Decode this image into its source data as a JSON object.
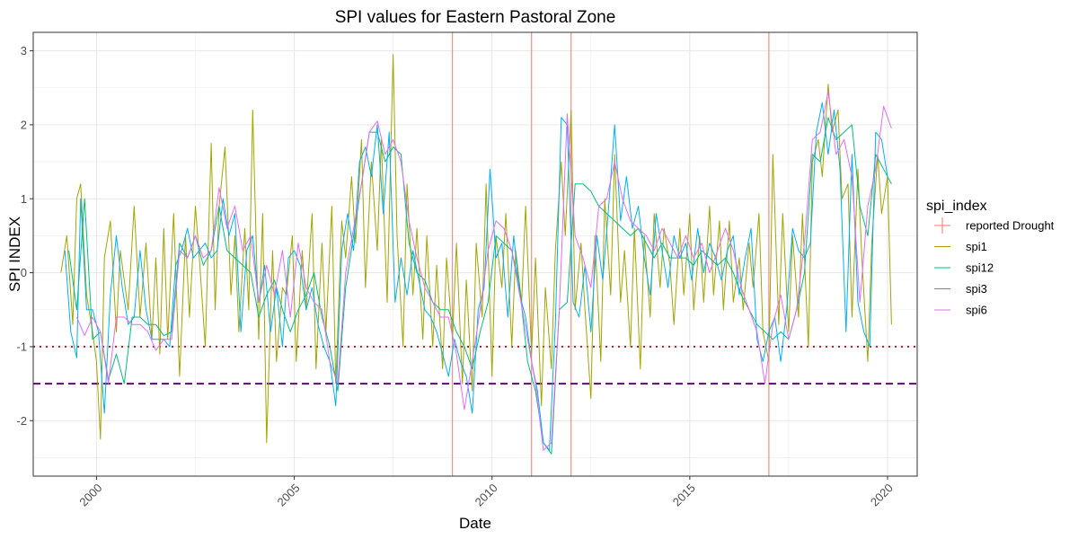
{
  "chart_data": {
    "type": "line",
    "title": "SPI values for Eastern Pastoral Zone",
    "xlabel": "Date",
    "ylabel": "SPI INDEX",
    "xlim": [
      1998.4,
      2020.75
    ],
    "ylim": [
      -2.75,
      3.25
    ],
    "x_ticks": [
      2000,
      2005,
      2010,
      2015,
      2020
    ],
    "x_tick_labels": [
      "2000",
      "2005",
      "2010",
      "2015",
      "2020"
    ],
    "y_ticks": [
      -2,
      -1,
      0,
      1,
      2,
      3
    ],
    "y_tick_labels": [
      "-2",
      "-1",
      "0",
      "1",
      "2",
      "3"
    ],
    "grid": true,
    "legend": {
      "title": "spi_index",
      "position": "right",
      "entries": [
        "reported Drought",
        "spi1",
        "spi12",
        "spi3",
        "spi6"
      ]
    },
    "drought_years": [
      2009.0,
      2011.0,
      2012.0,
      2017.0
    ],
    "thresholds": [
      {
        "value": -1.0,
        "style": "dotted",
        "color": "#B2182B"
      },
      {
        "value": -1.5,
        "style": "dashed",
        "color": "#5E0A6E"
      }
    ],
    "colors": {
      "reported Drought": "#F8766D",
      "spi1": "#A3A500",
      "spi12": "#00BF7D",
      "spi3": "#00B0F6",
      "spi6": "#E76BF3"
    },
    "series": [
      {
        "name": "spi1",
        "x": [
          1999.1,
          1999.25,
          1999.4,
          1999.5,
          1999.6,
          1999.75,
          1999.9,
          2000.0,
          2000.1,
          2000.2,
          2000.35,
          2000.5,
          2000.6,
          2000.8,
          2000.95,
          2001.1,
          2001.25,
          2001.4,
          2001.5,
          2001.6,
          2001.7,
          2001.8,
          2001.95,
          2002.1,
          2002.25,
          2002.35,
          2002.5,
          2002.6,
          2002.75,
          2002.9,
          2003.0,
          2003.1,
          2003.25,
          2003.4,
          2003.5,
          2003.6,
          2003.75,
          2003.85,
          2003.95,
          2004.1,
          2004.2,
          2004.3,
          2004.45,
          2004.55,
          2004.7,
          2004.8,
          2004.95,
          2005.05,
          2005.2,
          2005.3,
          2005.45,
          2005.55,
          2005.7,
          2005.8,
          2005.95,
          2006.05,
          2006.2,
          2006.3,
          2006.45,
          2006.55,
          2006.7,
          2006.8,
          2006.95,
          2007.1,
          2007.2,
          2007.35,
          2007.5,
          2007.6,
          2007.75,
          2007.85,
          2008.0,
          2008.1,
          2008.25,
          2008.35,
          2008.5,
          2008.6,
          2008.75,
          2008.85,
          2009.0,
          2009.1,
          2009.25,
          2009.35,
          2009.5,
          2009.6,
          2009.75,
          2009.85,
          2010.0,
          2010.1,
          2010.25,
          2010.35,
          2010.5,
          2010.6,
          2010.75,
          2010.85,
          2011.0,
          2011.1,
          2011.25,
          2011.35,
          2011.5,
          2011.6,
          2011.75,
          2011.85,
          2012.0,
          2012.1,
          2012.25,
          2012.35,
          2012.5,
          2012.6,
          2012.75,
          2012.85,
          2013.0,
          2013.1,
          2013.25,
          2013.35,
          2013.5,
          2013.6,
          2013.75,
          2013.85,
          2014.0,
          2014.1,
          2014.25,
          2014.35,
          2014.5,
          2014.6,
          2014.75,
          2014.85,
          2015.0,
          2015.1,
          2015.25,
          2015.35,
          2015.5,
          2015.6,
          2015.75,
          2015.85,
          2016.0,
          2016.1,
          2016.25,
          2016.35,
          2016.5,
          2016.6,
          2016.75,
          2016.85,
          2017.0,
          2017.1,
          2017.25,
          2017.35,
          2017.5,
          2017.6,
          2017.75,
          2017.85,
          2018.0,
          2018.1,
          2018.25,
          2018.35,
          2018.5,
          2018.6,
          2018.75,
          2018.85,
          2019.0,
          2019.1,
          2019.25,
          2019.35,
          2019.5,
          2019.6,
          2019.75,
          2019.85,
          2020.0,
          2020.1
        ],
        "values": [
          0.0,
          0.5,
          -0.7,
          1.0,
          1.2,
          -0.3,
          -0.8,
          -1.2,
          -2.25,
          0.2,
          0.7,
          -0.8,
          0.3,
          -0.5,
          0.9,
          -0.6,
          0.4,
          -0.9,
          0.2,
          -1.1,
          0.6,
          -0.9,
          0.8,
          -1.4,
          0.5,
          -0.6,
          0.9,
          0.2,
          -1.0,
          1.75,
          -0.5,
          0.9,
          1.7,
          -0.3,
          0.5,
          -0.8,
          0.6,
          -0.5,
          2.2,
          -0.9,
          0.8,
          -2.3,
          0.3,
          -1.2,
          -0.2,
          -0.3,
          0.5,
          -1.2,
          0.3,
          -0.5,
          0.8,
          -1.3,
          0.4,
          -0.8,
          0.9,
          -1.5,
          0.7,
          0.2,
          1.3,
          0.4,
          1.8,
          -0.2,
          1.5,
          0.3,
          1.8,
          -0.4,
          2.95,
          0.5,
          -1.0,
          1.2,
          -0.3,
          0.6,
          -0.9,
          0.5,
          -1.0,
          0.1,
          -1.3,
          0.2,
          -0.9,
          0.4,
          -1.5,
          -0.1,
          -1.6,
          0.4,
          -0.6,
          1.2,
          -1.4,
          0.5,
          -0.2,
          0.8,
          -1.0,
          0.3,
          -0.4,
          0.9,
          -1.1,
          0.2,
          -1.8,
          -0.2,
          -1.3,
          0.3,
          1.5,
          0.5,
          2.2,
          -0.5,
          0.4,
          -0.5,
          -1.7,
          0.5,
          -1.2,
          1.0,
          -0.3,
          1.6,
          -0.4,
          0.3,
          -1.0,
          0.6,
          -1.3,
          0.5,
          -0.6,
          0.8,
          -0.2,
          0.6,
          0.1,
          -0.7,
          0.6,
          -0.3,
          0.8,
          -0.5,
          0.5,
          -0.4,
          0.9,
          -0.3,
          0.7,
          -0.5,
          0.7,
          -0.4,
          0.2,
          -0.5,
          0.4,
          -0.2,
          0.8,
          -0.8,
          -1.2,
          1.6,
          -0.7,
          0.8,
          -0.8,
          0.5,
          -0.6,
          0.8,
          -1.0,
          1.5,
          1.8,
          1.3,
          2.55,
          1.9,
          2.2,
          1.0,
          1.2,
          -0.6,
          1.4,
          0.2,
          -1.2,
          0.4,
          1.6,
          0.8,
          1.3,
          -0.7
        ]
      },
      {
        "name": "spi12",
        "x": [
          1999.3,
          1999.5,
          1999.7,
          1999.9,
          2000.1,
          2000.3,
          2000.5,
          2000.7,
          2000.9,
          2001.1,
          2001.3,
          2001.5,
          2001.7,
          2001.9,
          2002.1,
          2002.3,
          2002.5,
          2002.7,
          2002.9,
          2003.1,
          2003.3,
          2003.5,
          2003.7,
          2003.9,
          2004.1,
          2004.3,
          2004.5,
          2004.7,
          2004.9,
          2005.1,
          2005.3,
          2005.5,
          2005.7,
          2005.9,
          2006.1,
          2006.3,
          2006.5,
          2006.7,
          2006.9,
          2007.1,
          2007.3,
          2007.5,
          2007.7,
          2007.9,
          2008.1,
          2008.3,
          2008.5,
          2008.7,
          2008.9,
          2009.1,
          2009.3,
          2009.5,
          2009.7,
          2009.9,
          2010.1,
          2010.3,
          2010.5,
          2010.7,
          2010.9,
          2011.1,
          2011.3,
          2011.5,
          2011.7,
          2011.9,
          2012.1,
          2012.3,
          2012.5,
          2012.7,
          2012.9,
          2013.1,
          2013.3,
          2013.5,
          2013.7,
          2013.9,
          2014.1,
          2014.3,
          2014.5,
          2014.7,
          2014.9,
          2015.1,
          2015.3,
          2015.5,
          2015.7,
          2015.9,
          2016.1,
          2016.3,
          2016.5,
          2016.7,
          2016.9,
          2017.1,
          2017.3,
          2017.5,
          2017.7,
          2017.9,
          2018.1,
          2018.3,
          2018.5,
          2018.7,
          2018.9,
          2019.1,
          2019.3,
          2019.5,
          2019.7,
          2019.9,
          2020.1
        ],
        "values": [
          0.3,
          -0.5,
          1.0,
          -0.9,
          -0.8,
          -1.45,
          -1.1,
          -1.5,
          -0.6,
          -0.6,
          -0.7,
          -0.7,
          -0.85,
          -0.8,
          0.4,
          0.2,
          0.5,
          0.1,
          0.3,
          0.9,
          0.3,
          0.2,
          0.1,
          0.0,
          -0.6,
          -0.3,
          -0.1,
          -0.5,
          -0.8,
          -0.5,
          -0.3,
          0.0,
          -0.6,
          -1.0,
          -1.6,
          -0.2,
          0.5,
          1.2,
          1.9,
          1.9,
          1.5,
          1.7,
          1.6,
          0.4,
          0.0,
          -0.1,
          -0.4,
          -0.5,
          -0.5,
          -0.8,
          -1.0,
          -1.3,
          -0.8,
          -0.4,
          0.5,
          0.4,
          0.3,
          -0.2,
          -1.2,
          -1.6,
          -2.3,
          -2.45,
          -0.5,
          -0.4,
          1.2,
          1.2,
          1.1,
          0.9,
          0.8,
          0.7,
          0.6,
          0.5,
          0.6,
          0.4,
          0.2,
          0.4,
          0.2,
          0.2,
          0.2,
          0.1,
          0.3,
          0.2,
          0.1,
          0.2,
          0.0,
          -0.3,
          -0.5,
          -0.7,
          -0.8,
          -0.9,
          -0.8,
          -0.9,
          -0.5,
          0.0,
          1.6,
          1.5,
          2.1,
          1.8,
          1.9,
          2.0,
          0.9,
          0.5,
          1.6,
          1.4,
          1.2
        ]
      },
      {
        "name": "spi3",
        "x": [
          1999.2,
          1999.35,
          1999.5,
          1999.6,
          1999.75,
          1999.9,
          2000.05,
          2000.2,
          2000.35,
          2000.5,
          2000.65,
          2000.8,
          2000.95,
          2001.1,
          2001.25,
          2001.4,
          2001.55,
          2001.7,
          2001.85,
          2002.0,
          2002.15,
          2002.3,
          2002.45,
          2002.6,
          2002.75,
          2002.9,
          2003.05,
          2003.2,
          2003.35,
          2003.5,
          2003.65,
          2003.8,
          2003.95,
          2004.1,
          2004.25,
          2004.4,
          2004.55,
          2004.7,
          2004.85,
          2005.0,
          2005.15,
          2005.3,
          2005.45,
          2005.6,
          2005.75,
          2005.9,
          2006.05,
          2006.2,
          2006.35,
          2006.5,
          2006.65,
          2006.8,
          2006.95,
          2007.1,
          2007.25,
          2007.4,
          2007.55,
          2007.7,
          2007.85,
          2008.0,
          2008.15,
          2008.3,
          2008.45,
          2008.6,
          2008.75,
          2008.9,
          2009.05,
          2009.2,
          2009.35,
          2009.5,
          2009.65,
          2009.8,
          2009.95,
          2010.1,
          2010.25,
          2010.4,
          2010.55,
          2010.7,
          2010.85,
          2011.0,
          2011.15,
          2011.3,
          2011.45,
          2011.6,
          2011.75,
          2011.9,
          2012.05,
          2012.2,
          2012.35,
          2012.5,
          2012.65,
          2012.8,
          2012.95,
          2013.1,
          2013.25,
          2013.4,
          2013.55,
          2013.7,
          2013.85,
          2014.0,
          2014.15,
          2014.3,
          2014.45,
          2014.6,
          2014.75,
          2014.9,
          2015.05,
          2015.2,
          2015.35,
          2015.5,
          2015.65,
          2015.8,
          2015.95,
          2016.1,
          2016.25,
          2016.4,
          2016.55,
          2016.7,
          2016.85,
          2017.0,
          2017.15,
          2017.3,
          2017.45,
          2017.6,
          2017.75,
          2017.9,
          2018.05,
          2018.2,
          2018.35,
          2018.5,
          2018.65,
          2018.8,
          2018.95,
          2019.1,
          2019.25,
          2019.4,
          2019.55,
          2019.7,
          2019.85,
          2020.0
        ],
        "values": [
          0.3,
          -0.8,
          -1.15,
          1.0,
          -0.5,
          -0.5,
          -0.8,
          -1.9,
          -0.3,
          0.5,
          -0.2,
          -0.7,
          -0.6,
          0.3,
          -0.5,
          -0.9,
          -0.9,
          -0.9,
          -1.0,
          0.1,
          0.3,
          0.6,
          0.2,
          0.3,
          0.4,
          0.2,
          0.3,
          1.0,
          0.5,
          0.8,
          -0.8,
          0.3,
          0.5,
          -0.4,
          0.1,
          -0.8,
          -0.2,
          -1.0,
          0.2,
          0.3,
          0.1,
          -0.5,
          -0.2,
          -0.7,
          -1.0,
          -1.2,
          -1.8,
          0.3,
          0.8,
          0.3,
          1.5,
          1.7,
          1.3,
          2.0,
          0.8,
          1.9,
          -0.4,
          0.2,
          -0.3,
          0.3,
          -0.1,
          -0.5,
          -0.6,
          -0.8,
          -1.1,
          -1.4,
          -0.9,
          -1.2,
          -1.4,
          -1.9,
          -0.5,
          -0.2,
          1.4,
          0.2,
          0.4,
          -0.6,
          0.5,
          -0.3,
          -0.6,
          -1.2,
          -1.6,
          -2.3,
          -2.4,
          -0.7,
          2.1,
          2.0,
          -0.4,
          -0.6,
          0.1,
          -0.8,
          0.5,
          -0.1,
          0.9,
          2.0,
          0.7,
          1.3,
          0.6,
          0.9,
          0.2,
          -0.3,
          0.8,
          0.3,
          -0.2,
          0.5,
          0.2,
          0.4,
          -0.1,
          0.6,
          0.0,
          0.4,
          0.2,
          -0.1,
          0.3,
          0.5,
          -0.3,
          0.2,
          0.6,
          -0.9,
          -1.2,
          -0.8,
          -0.6,
          -1.2,
          -0.5,
          0.6,
          0.3,
          0.2,
          0.4,
          1.9,
          2.3,
          1.6,
          2.2,
          1.4,
          -0.8,
          1.6,
          -0.4,
          -0.8,
          -1.0,
          1.9,
          1.8,
          1.3
        ]
      },
      {
        "name": "spi6",
        "x": [
          1999.5,
          1999.7,
          1999.9,
          2000.1,
          2000.3,
          2000.5,
          2000.7,
          2000.9,
          2001.1,
          2001.3,
          2001.5,
          2001.7,
          2001.9,
          2002.1,
          2002.3,
          2002.5,
          2002.7,
          2002.9,
          2003.1,
          2003.3,
          2003.5,
          2003.7,
          2003.9,
          2004.1,
          2004.3,
          2004.5,
          2004.7,
          2004.9,
          2005.1,
          2005.3,
          2005.5,
          2005.7,
          2005.9,
          2006.1,
          2006.3,
          2006.5,
          2006.7,
          2006.9,
          2007.1,
          2007.3,
          2007.5,
          2007.7,
          2007.9,
          2008.1,
          2008.3,
          2008.5,
          2008.7,
          2008.9,
          2009.1,
          2009.3,
          2009.5,
          2009.7,
          2009.9,
          2010.1,
          2010.3,
          2010.5,
          2010.7,
          2010.9,
          2011.1,
          2011.3,
          2011.5,
          2011.7,
          2011.9,
          2012.1,
          2012.3,
          2012.5,
          2012.7,
          2012.9,
          2013.1,
          2013.3,
          2013.5,
          2013.7,
          2013.9,
          2014.1,
          2014.3,
          2014.5,
          2014.7,
          2014.9,
          2015.1,
          2015.3,
          2015.5,
          2015.7,
          2015.9,
          2016.1,
          2016.3,
          2016.5,
          2016.7,
          2016.9,
          2017.1,
          2017.3,
          2017.5,
          2017.7,
          2017.9,
          2018.1,
          2018.3,
          2018.5,
          2018.7,
          2018.9,
          2019.1,
          2019.3,
          2019.5,
          2019.7,
          2019.9,
          2020.1
        ],
        "values": [
          -0.6,
          -0.85,
          -0.6,
          -0.8,
          -1.5,
          -0.6,
          -0.6,
          -0.7,
          -0.7,
          -0.8,
          -1.05,
          -0.9,
          -0.9,
          0.3,
          0.2,
          0.5,
          0.2,
          0.3,
          1.15,
          0.6,
          0.9,
          0.3,
          0.5,
          -0.4,
          0.1,
          -0.3,
          0.3,
          -0.6,
          0.4,
          -0.2,
          -0.4,
          -0.5,
          -1.2,
          -1.5,
          0.0,
          0.6,
          1.2,
          1.9,
          2.05,
          1.6,
          1.8,
          1.5,
          0.7,
          0.2,
          -0.2,
          -0.4,
          -0.6,
          -0.6,
          -1.1,
          -1.85,
          -1.2,
          -0.5,
          0.3,
          0.7,
          0.6,
          0.3,
          -0.3,
          -0.9,
          -1.5,
          -2.4,
          -2.3,
          -0.5,
          2.15,
          0.5,
          0.2,
          -0.2,
          0.9,
          1.0,
          1.5,
          1.0,
          0.7,
          0.6,
          0.5,
          0.3,
          0.6,
          0.4,
          0.2,
          0.5,
          0.2,
          0.4,
          0.0,
          0.3,
          0.6,
          0.3,
          -0.2,
          -0.5,
          -0.8,
          -1.5,
          -0.7,
          -0.3,
          -0.9,
          -0.5,
          0.4,
          1.8,
          1.9,
          2.45,
          1.6,
          1.8,
          1.3,
          -0.4,
          0.9,
          1.4,
          2.25,
          1.95
        ]
      }
    ]
  }
}
